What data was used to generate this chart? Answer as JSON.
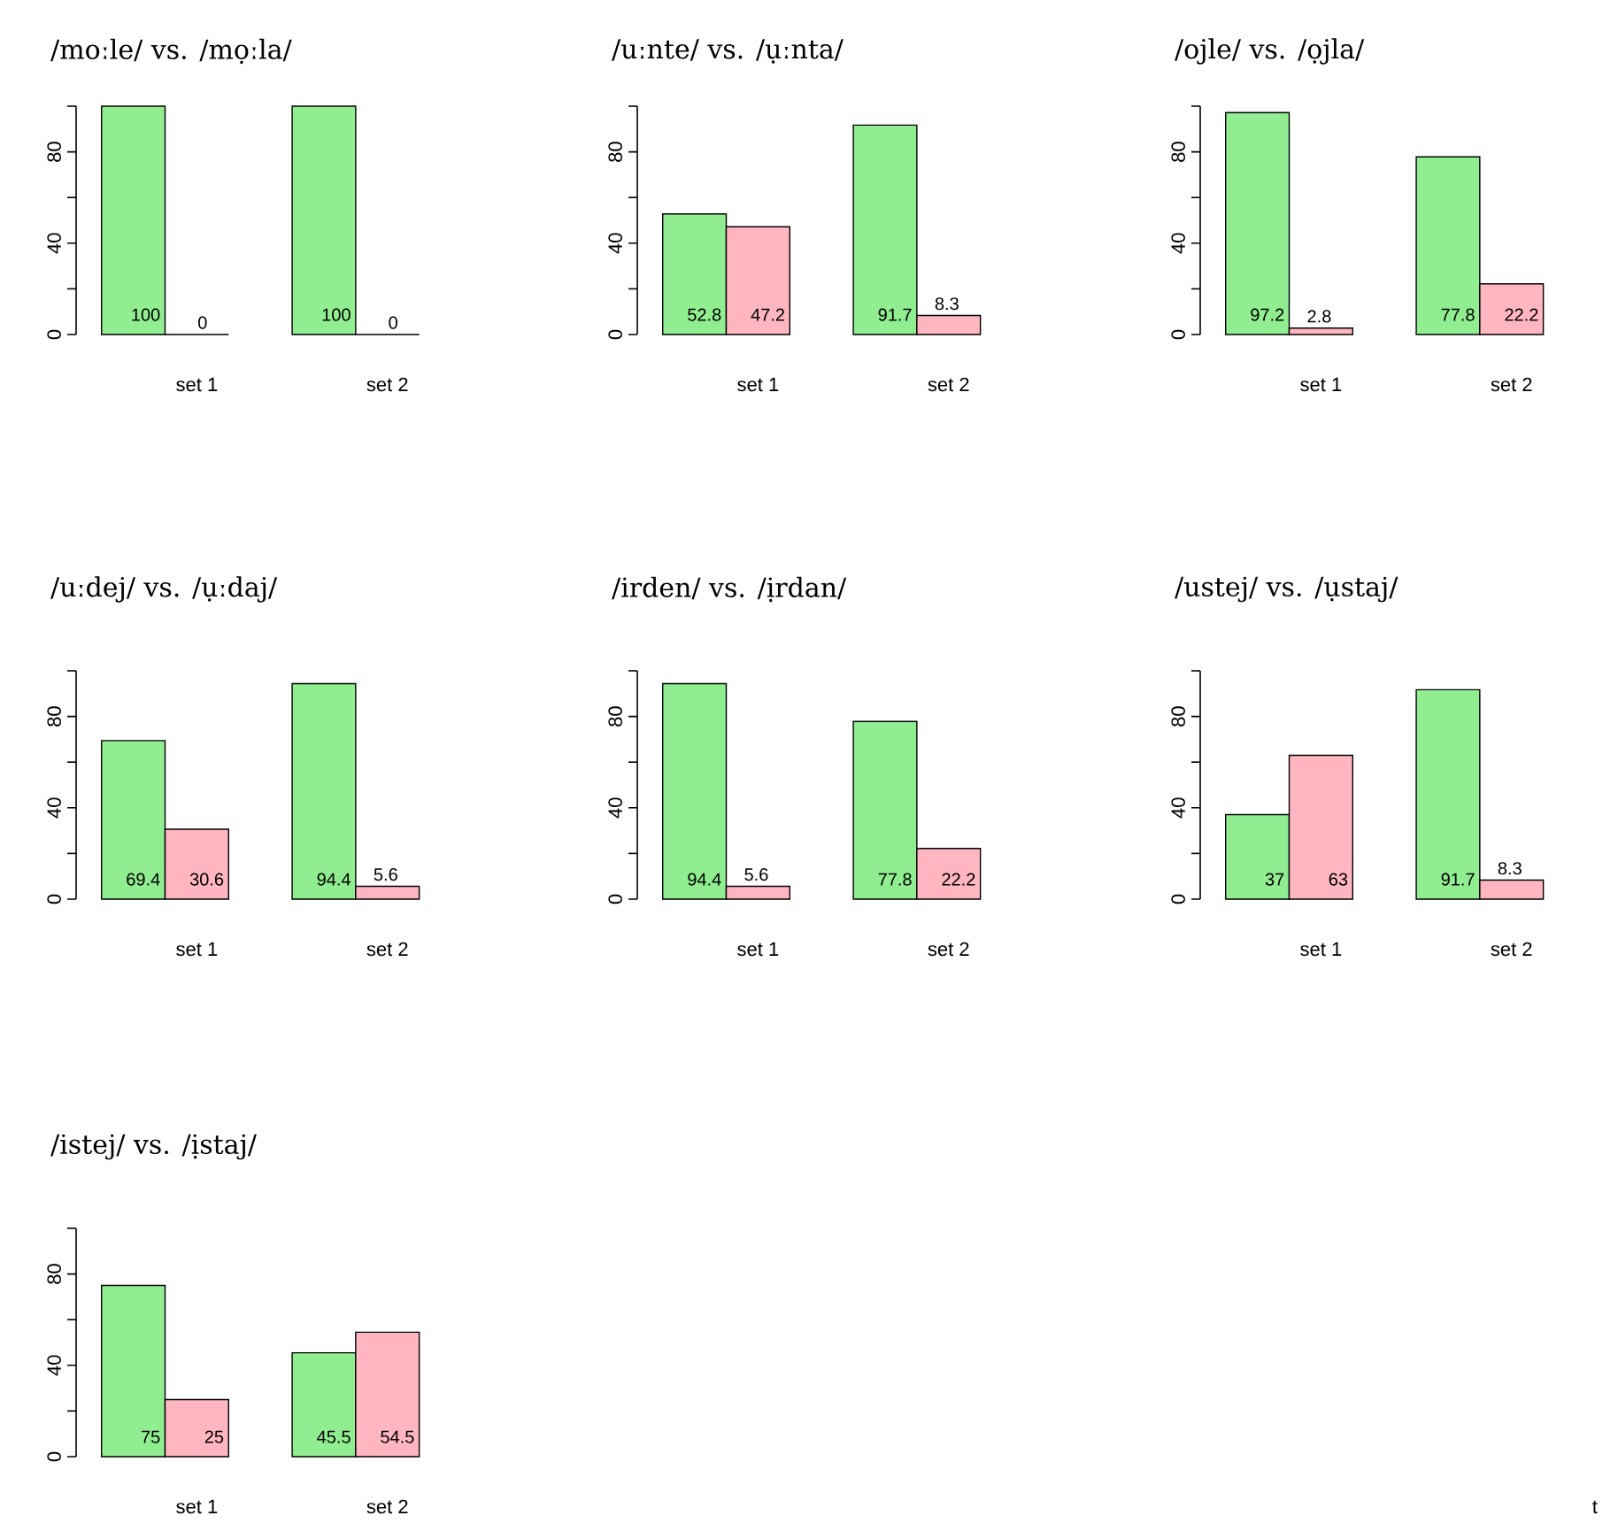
{
  "chart_data": [
    {
      "type": "bar",
      "title": "/moːle/ vs. /mọːla/",
      "categories": [
        "set 1",
        "set 2"
      ],
      "series": [
        {
          "color": "#90ee90",
          "values": [
            100,
            100
          ]
        },
        {
          "color": "#ffb6c1",
          "values": [
            0,
            0
          ]
        }
      ],
      "ylim": [
        0,
        100
      ],
      "yticks": [
        0,
        40,
        80
      ],
      "data_labels": true
    },
    {
      "type": "bar",
      "title": "/uːnte/ vs. /ụːnta/",
      "categories": [
        "set 1",
        "set 2"
      ],
      "series": [
        {
          "color": "#90ee90",
          "values": [
            52.8,
            91.7
          ]
        },
        {
          "color": "#ffb6c1",
          "values": [
            47.2,
            8.3
          ]
        }
      ],
      "ylim": [
        0,
        100
      ],
      "yticks": [
        0,
        40,
        80
      ],
      "data_labels": true
    },
    {
      "type": "bar",
      "title": "/ojle/ vs. /ọjla/",
      "categories": [
        "set 1",
        "set 2"
      ],
      "series": [
        {
          "color": "#90ee90",
          "values": [
            97.2,
            77.8
          ]
        },
        {
          "color": "#ffb6c1",
          "values": [
            2.8,
            22.2
          ]
        }
      ],
      "ylim": [
        0,
        100
      ],
      "yticks": [
        0,
        40,
        80
      ],
      "data_labels": true
    },
    {
      "type": "bar",
      "title": "/uːdej/ vs. /ụːdaj/",
      "categories": [
        "set 1",
        "set 2"
      ],
      "series": [
        {
          "color": "#90ee90",
          "values": [
            69.4,
            94.4
          ]
        },
        {
          "color": "#ffb6c1",
          "values": [
            30.6,
            5.6
          ]
        }
      ],
      "ylim": [
        0,
        100
      ],
      "yticks": [
        0,
        40,
        80
      ],
      "data_labels": true
    },
    {
      "type": "bar",
      "title": "/irden/ vs. /ịrdan/",
      "categories": [
        "set 1",
        "set 2"
      ],
      "series": [
        {
          "color": "#90ee90",
          "values": [
            94.4,
            77.8
          ]
        },
        {
          "color": "#ffb6c1",
          "values": [
            5.6,
            22.2
          ]
        }
      ],
      "ylim": [
        0,
        100
      ],
      "yticks": [
        0,
        40,
        80
      ],
      "data_labels": true
    },
    {
      "type": "bar",
      "title": "/ustej/ vs. /ụstaj/",
      "categories": [
        "set 1",
        "set 2"
      ],
      "series": [
        {
          "color": "#90ee90",
          "values": [
            37,
            91.7
          ]
        },
        {
          "color": "#ffb6c1",
          "values": [
            63,
            8.3
          ]
        }
      ],
      "ylim": [
        0,
        100
      ],
      "yticks": [
        0,
        40,
        80
      ],
      "data_labels": true
    },
    {
      "type": "bar",
      "title": "/istej/ vs. /ịstaj/",
      "categories": [
        "set 1",
        "set 2"
      ],
      "series": [
        {
          "color": "#90ee90",
          "values": [
            75,
            45.5
          ]
        },
        {
          "color": "#ffb6c1",
          "values": [
            25,
            54.5
          ]
        }
      ],
      "ylim": [
        0,
        100
      ],
      "yticks": [
        0,
        40,
        80
      ],
      "data_labels": true,
      "annotations": [
        "t"
      ]
    }
  ]
}
